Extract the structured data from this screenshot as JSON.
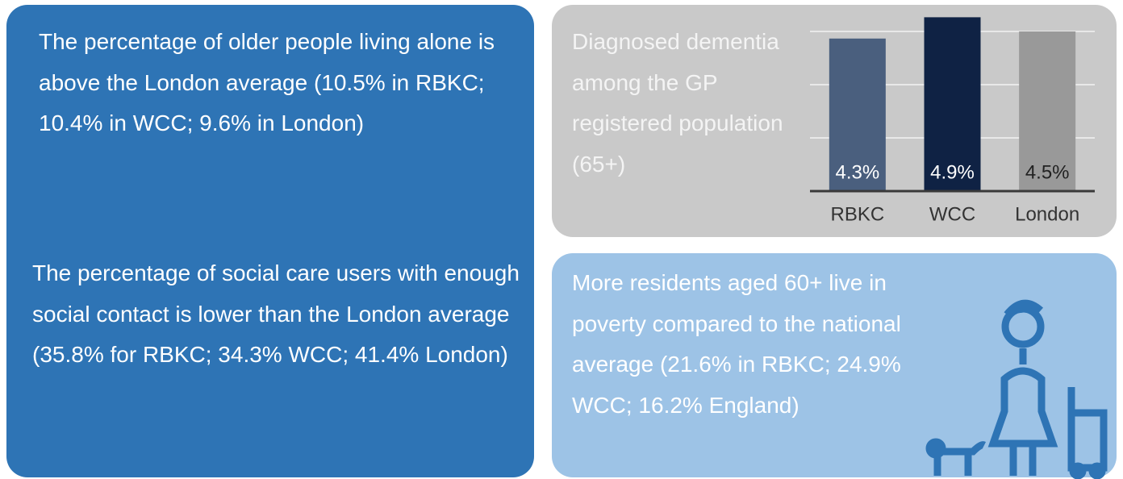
{
  "panels": {
    "living_alone": "The percentage of older people living alone is above the London average (10.5% in RBKC; 10.4% in WCC; 9.6% in London)",
    "social_contact": "The percentage of social care users with enough social contact is lower than the London average (35.8% for RBKC; 34.3% WCC; 41.4% London)",
    "poverty": "More residents aged 60+ live in poverty compared to the national average (21.6% in RBKC; 24.9% WCC; 16.2% England)"
  },
  "chart_data": {
    "type": "bar",
    "title": "Diagnosed dementia among the GP registered population (65+)",
    "categories": [
      "RBKC",
      "WCC",
      "London"
    ],
    "values": [
      4.3,
      4.9,
      4.5
    ],
    "value_labels": [
      "4.3%",
      "4.9%",
      "4.5%"
    ],
    "colors": [
      "#4a5f7e",
      "#0f2244",
      "#999999"
    ],
    "ylim": [
      0,
      5
    ],
    "yticks": [
      0,
      1.5,
      3,
      4.5
    ],
    "grid": true
  }
}
